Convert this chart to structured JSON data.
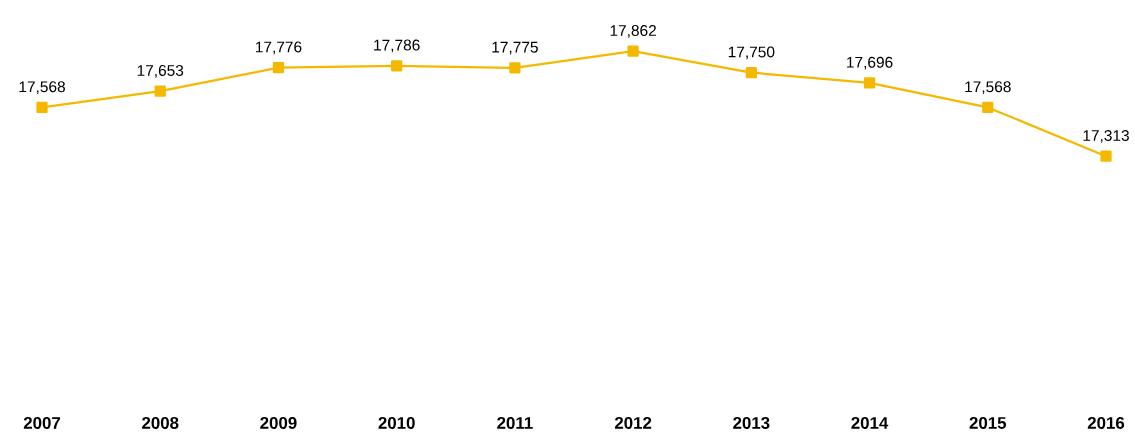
{
  "chart_data": {
    "type": "line",
    "categories": [
      "2007",
      "2008",
      "2009",
      "2010",
      "2011",
      "2012",
      "2013",
      "2014",
      "2015",
      "2016"
    ],
    "values": [
      17568,
      17653,
      17776,
      17786,
      17775,
      17862,
      17750,
      17696,
      17568,
      17313
    ],
    "value_labels": [
      "17,568",
      "17,653",
      "17,776",
      "17,786",
      "17,775",
      "17,862",
      "17,750",
      "17,696",
      "17,568",
      "17,313"
    ],
    "color": "#f5b800",
    "marker": "square",
    "line_style": "solid",
    "tick_labels": "x"
  }
}
